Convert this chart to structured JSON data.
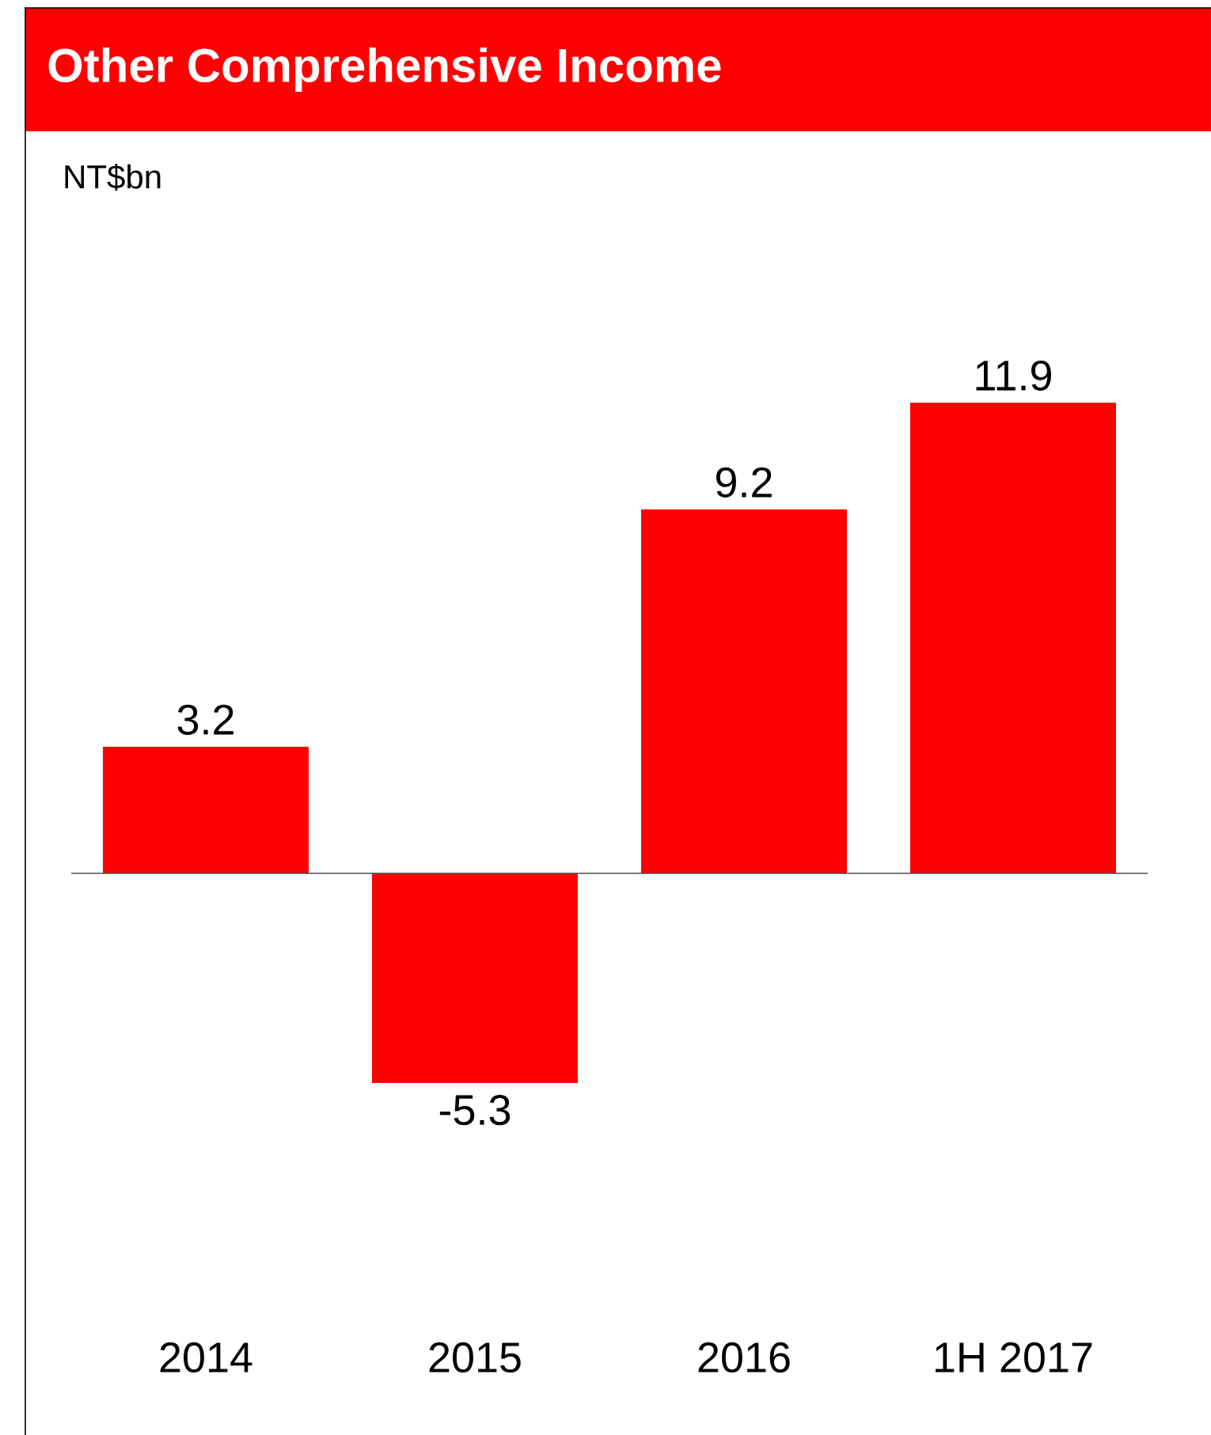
{
  "chart_data": {
    "type": "bar",
    "title": "Other Comprehensive Income",
    "annotations": [
      "NT$bn"
    ],
    "categories": [
      "2014",
      "2015",
      "2016",
      "1H 2017"
    ],
    "values": [
      3.2,
      -5.3,
      9.2,
      11.9
    ],
    "color": "#ff0000",
    "data_labels": true
  }
}
